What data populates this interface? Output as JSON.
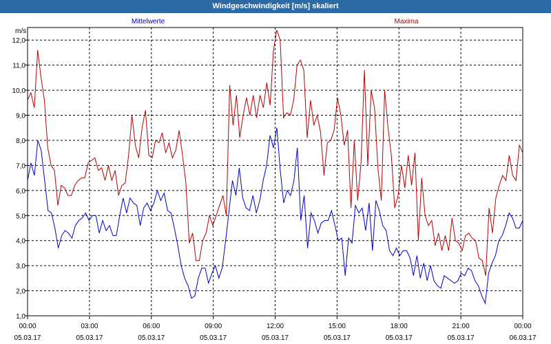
{
  "window": {
    "title": "Windgeschwindigkeit [m/s] skaliert"
  },
  "chart_data": {
    "type": "line",
    "title": "Windgeschwindigkeit [m/s] skaliert",
    "ylabel": "m/s",
    "ylim": [
      1.0,
      12.5
    ],
    "yticks": [
      "1,0",
      "2,0",
      "3,0",
      "4,0",
      "5,0",
      "6,0",
      "7,0",
      "8,0",
      "9,0",
      "10,0",
      "11,0",
      "12,0"
    ],
    "xlim": [
      0,
      24
    ],
    "xticks": [
      {
        "time": "00:00",
        "date": "05.03.17"
      },
      {
        "time": "03:00",
        "date": "05.03.17"
      },
      {
        "time": "06:00",
        "date": "05.03.17"
      },
      {
        "time": "09:00",
        "date": "05.03.17"
      },
      {
        "time": "12:00",
        "date": "05.03.17"
      },
      {
        "time": "15:00",
        "date": "05.03.17"
      },
      {
        "time": "18:00",
        "date": "05.03.17"
      },
      {
        "time": "21:00",
        "date": "05.03.17"
      },
      {
        "time": "00:00",
        "date": "06.03.17"
      }
    ],
    "grid": true,
    "series": [
      {
        "name": "Mittelwerte",
        "color": "#0000c8",
        "values": [
          6.4,
          7.1,
          6.6,
          8.0,
          7.6,
          6.4,
          5.2,
          5.1,
          4.5,
          3.7,
          4.2,
          4.4,
          4.3,
          4.1,
          4.6,
          4.8,
          4.9,
          5.1,
          4.8,
          5.0,
          5.0,
          4.3,
          4.8,
          4.4,
          4.6,
          4.2,
          4.2,
          5.0,
          5.7,
          5.1,
          5.7,
          5.5,
          5.4,
          4.6,
          5.3,
          5.5,
          5.2,
          5.5,
          6.0,
          5.6,
          5.9,
          5.2,
          5.1,
          4.5,
          3.8,
          3.0,
          2.5,
          2.2,
          1.7,
          1.8,
          2.5,
          2.9,
          2.9,
          2.3,
          2.7,
          3.0,
          2.5,
          2.9,
          4.0,
          5.2,
          6.4,
          5.8,
          6.9,
          5.7,
          5.3,
          5.2,
          5.8,
          5.1,
          5.6,
          6.4,
          7.0,
          8.2,
          7.7,
          8.5,
          6.8,
          5.5,
          6.0,
          5.8,
          6.4,
          7.7,
          4.8,
          5.8,
          3.7,
          5.1,
          4.8,
          4.3,
          4.7,
          4.8,
          4.8,
          5.2,
          4.6,
          4.0,
          4.1,
          2.6,
          4.1,
          3.9,
          5.4,
          5.1,
          5.3,
          4.4,
          5.5,
          3.6,
          5.6,
          5.2,
          4.6,
          4.4,
          3.6,
          3.4,
          3.7,
          3.4,
          3.6,
          3.6,
          3.3,
          2.6,
          3.4,
          2.5,
          3.1,
          2.4,
          3.0,
          2.4,
          2.2,
          2.1,
          2.6,
          2.5,
          2.4,
          2.3,
          2.4,
          2.7,
          2.6,
          2.9,
          2.8,
          2.4,
          2.2,
          1.8,
          1.5,
          2.7,
          3.1,
          3.4,
          4.0,
          4.2,
          4.6,
          5.1,
          4.9,
          4.5,
          4.5,
          4.8
        ]
      },
      {
        "name": "Maxima",
        "color": "#b40000",
        "values": [
          9.6,
          9.9,
          9.3,
          11.6,
          10.5,
          9.6,
          7.7,
          7.0,
          6.8,
          5.4,
          6.2,
          6.1,
          5.8,
          5.8,
          6.2,
          6.4,
          6.5,
          6.5,
          7.1,
          7.2,
          7.3,
          6.8,
          6.9,
          6.4,
          7.0,
          6.4,
          6.8,
          5.8,
          6.2,
          6.3,
          7.4,
          9.0,
          7.8,
          7.3,
          8.5,
          9.2,
          7.4,
          7.3,
          8.0,
          7.9,
          8.3,
          7.5,
          7.9,
          7.3,
          7.6,
          8.4,
          7.4,
          6.3,
          3.9,
          4.3,
          3.2,
          3.2,
          4.0,
          4.3,
          5.0,
          4.6,
          5.0,
          5.4,
          5.8,
          5.0,
          10.2,
          8.6,
          9.8,
          8.1,
          9.0,
          9.7,
          9.0,
          9.8,
          8.9,
          9.8,
          9.3,
          10.3,
          9.4,
          11.6,
          12.4,
          12.0,
          8.9,
          9.1,
          9.0,
          9.6,
          11.0,
          11.2,
          10.8,
          8.1,
          9.6,
          8.6,
          9.0,
          8.3,
          6.6,
          7.9,
          8.0,
          8.4,
          9.7,
          9.0,
          7.8,
          8.4,
          5.3,
          8.0,
          5.6,
          7.1,
          10.8,
          7.0,
          10.0,
          9.3,
          6.9,
          5.6,
          10.0,
          8.5,
          7.4,
          5.3,
          5.8,
          7.0,
          6.1,
          7.4,
          6.2,
          7.5,
          4.0,
          6.5,
          5.0,
          4.6,
          4.8,
          3.8,
          4.3,
          3.6,
          4.2,
          3.6,
          4.9,
          4.0,
          3.9,
          3.6,
          4.2,
          4.3,
          4.1,
          4.0,
          3.3,
          3.2,
          2.6,
          5.3,
          4.3,
          5.7,
          6.2,
          6.6,
          6.4,
          7.4,
          6.6,
          6.4,
          7.8,
          7.5
        ]
      }
    ]
  }
}
